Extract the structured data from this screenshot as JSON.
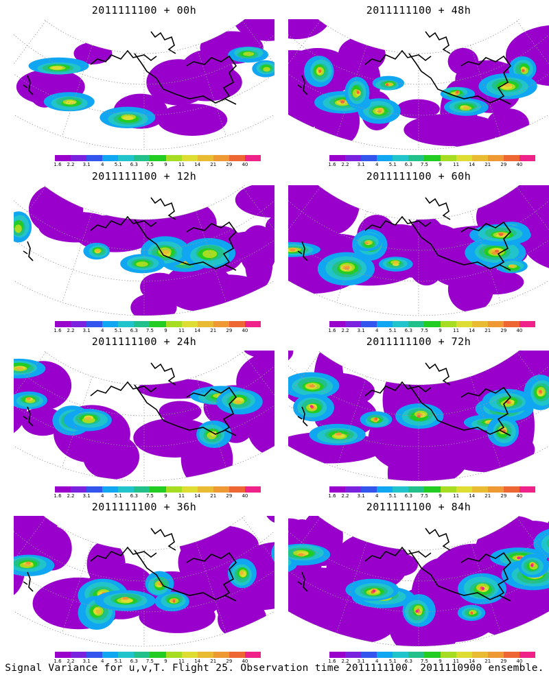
{
  "colors": {
    "scale": [
      "#9900cc",
      "#7a22dd",
      "#3355ee",
      "#11a6f2",
      "#22c4cc",
      "#22c08a",
      "#22cc22",
      "#a6dd22",
      "#dddd33",
      "#e8bb33",
      "#ee9933",
      "#ee6633",
      "#ee2288"
    ],
    "coastline": "#000000",
    "graticule": "#999999"
  },
  "colorbar": {
    "labels": [
      "1.6",
      "2.2",
      "3.1",
      "4",
      "5.1",
      "6.3",
      "7.5",
      "9",
      "11",
      "14",
      "21",
      "29",
      "40"
    ]
  },
  "panels": [
    {
      "title": "2011111100 + 00h",
      "activity": 0.25
    },
    {
      "title": "2011111100 + 48h",
      "activity": 0.75
    },
    {
      "title": "2011111100 + 12h",
      "activity": 0.4
    },
    {
      "title": "2011111100 + 60h",
      "activity": 0.8
    },
    {
      "title": "2011111100 + 24h",
      "activity": 0.55
    },
    {
      "title": "2011111100 + 72h",
      "activity": 0.9
    },
    {
      "title": "2011111100 + 36h",
      "activity": 0.65
    },
    {
      "title": "2011111100 + 84h",
      "activity": 0.95
    }
  ],
  "caption": "Signal Variance for u,v,T. Flight 25. Observation time 2011111100. 2011110900 ensemble."
}
